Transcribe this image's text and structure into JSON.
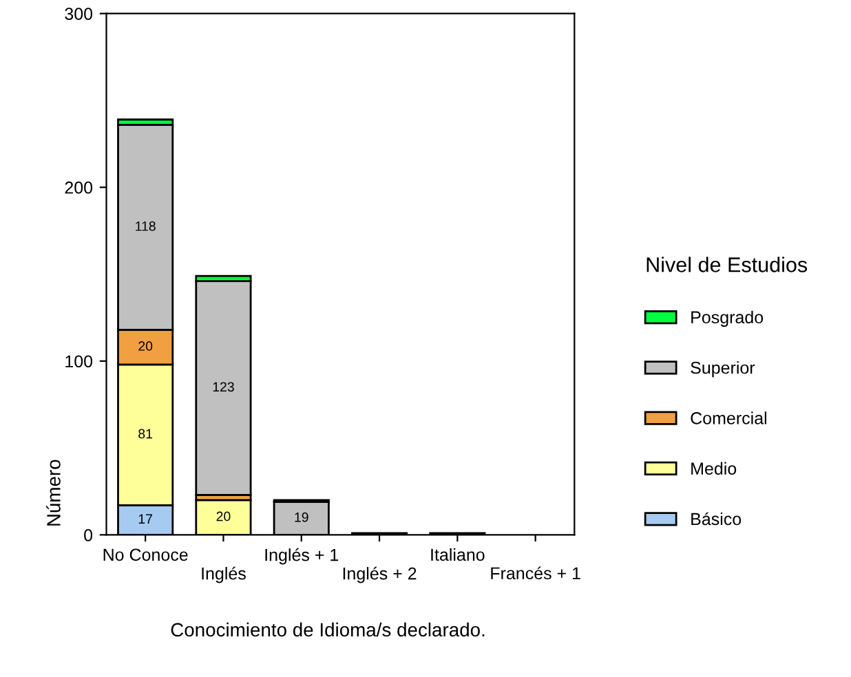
{
  "chart_data": {
    "type": "bar",
    "stacked": true,
    "xlabel": "Conocimiento de Idioma/s declarado.",
    "ylabel": "Número",
    "legend_title": "Nivel de Estudios",
    "legend": "right",
    "categories": [
      "No Conoce",
      "Inglés",
      "Inglés + 1",
      "Inglés + 2",
      "Italiano",
      "Francés + 1"
    ],
    "series": [
      {
        "name": "Básico",
        "color": "#a6caf0",
        "values": [
          17,
          null,
          null,
          null,
          null,
          null
        ],
        "value_labels": [
          "17",
          null,
          null,
          null,
          null,
          null
        ]
      },
      {
        "name": "Medio",
        "color": "#ffff99",
        "values": [
          81,
          20,
          null,
          null,
          null,
          null
        ],
        "value_labels": [
          "81",
          "20",
          null,
          null,
          null,
          null
        ]
      },
      {
        "name": "Comercial",
        "color": "#f0a040",
        "values": [
          20,
          3,
          null,
          null,
          null,
          null
        ],
        "value_labels": [
          "20",
          null,
          null,
          null,
          null,
          null
        ]
      },
      {
        "name": "Superior",
        "color": "#c0c0c0",
        "values": [
          118,
          123,
          19,
          1,
          1,
          null
        ],
        "value_labels": [
          "118",
          "123",
          "19",
          null,
          null,
          null
        ]
      },
      {
        "name": "Posgrado",
        "color": "#00ff40",
        "values": [
          3,
          3,
          1,
          null,
          null,
          null
        ],
        "value_labels": [
          null,
          null,
          null,
          null,
          null,
          null
        ]
      }
    ],
    "ylim": [
      0,
      300
    ],
    "yticks": [
      0,
      100,
      200,
      300
    ],
    "grid": false
  }
}
